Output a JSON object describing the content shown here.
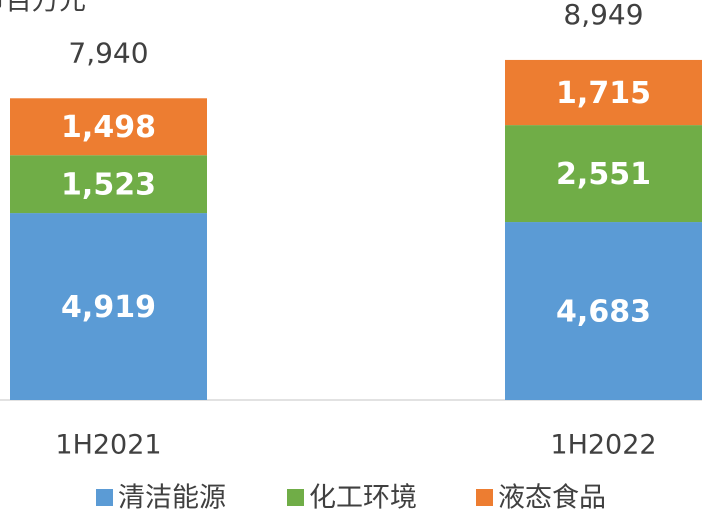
{
  "chart_data": {
    "type": "stacked_bar",
    "subtitle": "币百万元",
    "categories": [
      "1H2021",
      "1H2022"
    ],
    "series": [
      {
        "name": "清洁能源",
        "color": "#5b9bd5",
        "values": [
          4919,
          4683
        ],
        "value_labels": [
          "4,919",
          "4,683"
        ]
      },
      {
        "name": "化工环境",
        "color": "#70ad47",
        "values": [
          1523,
          2551
        ],
        "value_labels": [
          "1,523",
          "2,551"
        ]
      },
      {
        "name": "液态食品",
        "color": "#ed7d31",
        "values": [
          1498,
          1715
        ],
        "value_labels": [
          "1,498",
          "1,715"
        ]
      }
    ],
    "totals": [
      7940,
      8949
    ],
    "total_labels": [
      "7,940",
      "8,949"
    ],
    "ylim": [
      0,
      10000
    ],
    "legend": "bottom"
  }
}
